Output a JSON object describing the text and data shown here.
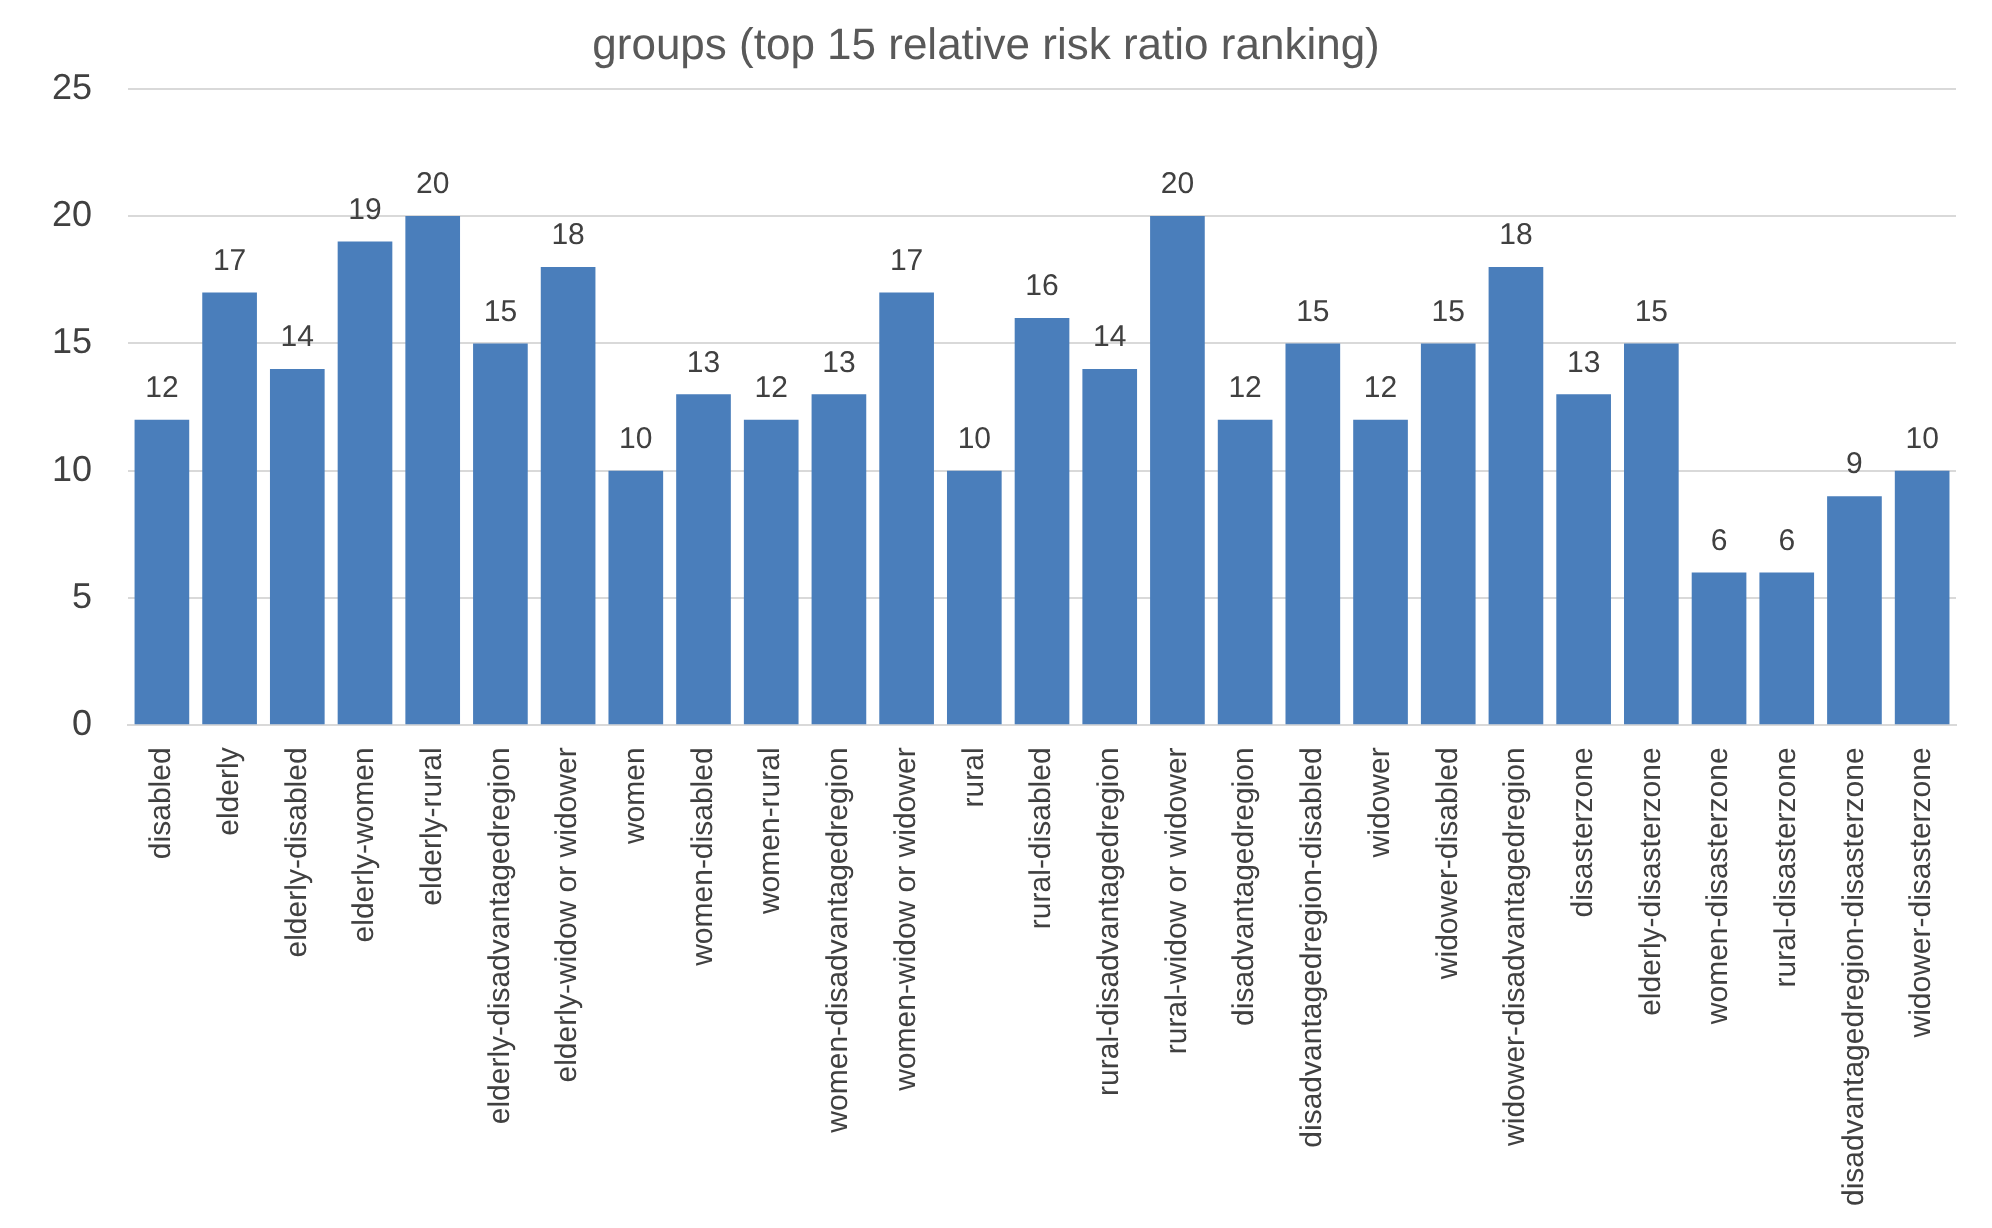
{
  "chart_data": {
    "type": "bar",
    "title": "groups (top 15 relative risk ratio ranking)",
    "categories": [
      "disabled",
      "elderly",
      "elderly-disabled",
      "elderly-women",
      "elderly-rural",
      "elderly-disadvantagedregion",
      "elderly-widow or widower",
      "women",
      "women-disabled",
      "women-rural",
      "women-disadvantagedregion",
      "women-widow or widower",
      "rural",
      "rural-disabled",
      "rural-disadvantagedregion",
      "rural-widow or widower",
      "disadvantagedregion",
      "disadvantagedregion-disabled",
      "widower",
      "widower-disabled",
      "widower-disadvantagedregion",
      "disasterzone",
      "elderly-disasterzone",
      "women-disasterzone",
      "rural-disasterzone",
      "disadvantagedregion-disasterzone",
      "widower-disasterzone"
    ],
    "values": [
      12,
      17,
      14,
      19,
      20,
      15,
      18,
      10,
      13,
      12,
      13,
      17,
      10,
      16,
      14,
      20,
      12,
      15,
      12,
      15,
      18,
      13,
      15,
      6,
      6,
      9,
      10
    ],
    "color": "#4a7ebb",
    "ylim": [
      0,
      25
    ],
    "yticks": [
      0,
      5,
      10,
      15,
      20,
      25
    ],
    "grid": "y",
    "data_labels": true
  }
}
